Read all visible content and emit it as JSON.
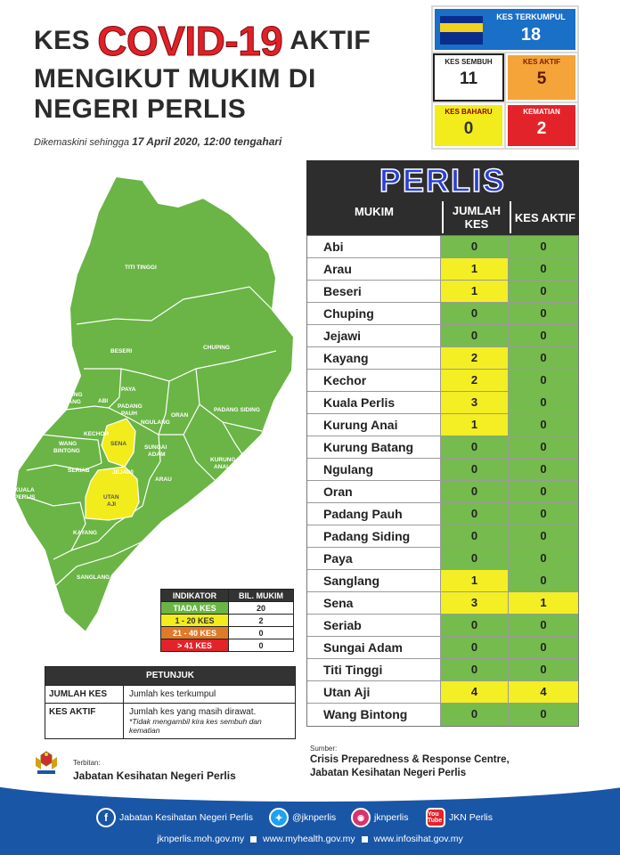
{
  "header": {
    "title_kes": "KES",
    "title_covid": "COVID-19",
    "title_aktif": "AKTIF",
    "title_line2": "MENGIKUT MUKIM DI",
    "title_line3": "NEGERI PERLIS",
    "updated_prefix": "Dikemaskini sehingga",
    "updated_value": "17 April 2020, 12:00 tengahari"
  },
  "stats": {
    "terkumpul_label": "KES TERKUMPUL",
    "terkumpul_value": "18",
    "sembuh_label": "KES SEMBUH",
    "sembuh_value": "11",
    "aktif_label": "KES AKTIF",
    "aktif_value": "5",
    "baharu_label": "KES BAHARU",
    "baharu_value": "0",
    "kematian_label": "KEMATIAN",
    "kematian_value": "2"
  },
  "map": {
    "labels": {
      "titi_tinggi": "TITI TINGGI",
      "beseri": "BESERI",
      "chuping": "CHUPING",
      "paya": "PAYA",
      "kurung_batang_1": "KURUNG",
      "kurung_batang_2": "BATANG",
      "abi": "ABI",
      "padang_pauh_1": "PADANG",
      "padang_pauh_2": "PAUH",
      "ngulang": "NGULANG",
      "oran": "ORAN",
      "padang_siding": "PADANG SIDING",
      "kechor": "KECHOR",
      "wang_bintong_1": "WANG",
      "wang_bintong_2": "BINTONG",
      "sena": "SENA",
      "sungai_adam_1": "SUNGAI",
      "sungai_adam_2": "ADAM",
      "kurung_anai_1": "KURUNG",
      "kurung_anai_2": "ANAI",
      "seriab": "SERIAB",
      "jejawi": "JEJAWI",
      "arau": "ARAU",
      "kuala_perlis_1": "KUALA",
      "kuala_perlis_2": "PERLIS",
      "utan_aji_1": "UTAN",
      "utan_aji_2": "AJI",
      "kayang": "KAYANG",
      "sanglang": "SANGLANG"
    },
    "colors": {
      "green": "#6ab545",
      "yellow": "#f2ec1c",
      "border": "#ffffff"
    }
  },
  "indikator": {
    "header_label": "INDIKATOR",
    "header_count": "BIL. MUKIM",
    "rows": [
      {
        "label": "TIADA KES",
        "count": "20"
      },
      {
        "label": "1 - 20 KES",
        "count": "2"
      },
      {
        "label": "21 - 40 KES",
        "count": "0"
      },
      {
        "label": "> 41 KES",
        "count": "0"
      }
    ]
  },
  "petunjuk": {
    "title": "PETUNJUK",
    "rows": [
      {
        "key": "JUMLAH KES",
        "value": "Jumlah kes terkumpul",
        "note": ""
      },
      {
        "key": "KES AKTIF",
        "value": "Jumlah kes yang masih dirawat.",
        "note": "*Tidak mengambil kira kes sembuh dan kematian"
      }
    ]
  },
  "table": {
    "state_title": "PERLIS",
    "col_mukim": "MUKIM",
    "col_jumlah": "JUMLAH KES",
    "col_aktif": "KES AKTIF",
    "rows": [
      {
        "name": "Abi",
        "jumlah": "0",
        "aktif": "0"
      },
      {
        "name": "Arau",
        "jumlah": "1",
        "aktif": "0"
      },
      {
        "name": "Beseri",
        "jumlah": "1",
        "aktif": "0"
      },
      {
        "name": "Chuping",
        "jumlah": "0",
        "aktif": "0"
      },
      {
        "name": "Jejawi",
        "jumlah": "0",
        "aktif": "0"
      },
      {
        "name": "Kayang",
        "jumlah": "2",
        "aktif": "0"
      },
      {
        "name": "Kechor",
        "jumlah": "2",
        "aktif": "0"
      },
      {
        "name": "Kuala Perlis",
        "jumlah": "3",
        "aktif": "0"
      },
      {
        "name": "Kurung Anai",
        "jumlah": "1",
        "aktif": "0"
      },
      {
        "name": "Kurung Batang",
        "jumlah": "0",
        "aktif": "0"
      },
      {
        "name": "Ngulang",
        "jumlah": "0",
        "aktif": "0"
      },
      {
        "name": "Oran",
        "jumlah": "0",
        "aktif": "0"
      },
      {
        "name": "Padang Pauh",
        "jumlah": "0",
        "aktif": "0"
      },
      {
        "name": "Padang Siding",
        "jumlah": "0",
        "aktif": "0"
      },
      {
        "name": "Paya",
        "jumlah": "0",
        "aktif": "0"
      },
      {
        "name": "Sanglang",
        "jumlah": "1",
        "aktif": "0"
      },
      {
        "name": "Sena",
        "jumlah": "3",
        "aktif": "1"
      },
      {
        "name": "Seriab",
        "jumlah": "0",
        "aktif": "0"
      },
      {
        "name": "Sungai Adam",
        "jumlah": "0",
        "aktif": "0"
      },
      {
        "name": "Titi Tinggi",
        "jumlah": "0",
        "aktif": "0"
      },
      {
        "name": "Utan Aji",
        "jumlah": "4",
        "aktif": "4"
      },
      {
        "name": "Wang Bintong",
        "jumlah": "0",
        "aktif": "0"
      }
    ]
  },
  "footer": {
    "terbitan_label": "Terbitan:",
    "terbitan": "Jabatan Kesihatan Negeri Perlis",
    "sumber_label": "Sumber:",
    "sumber_line1": "Crisis Preparedness & Response Centre,",
    "sumber_line2": "Jabatan Kesihatan Negeri Perlis",
    "facebook": "Jabatan Kesihatan Negeri Perlis",
    "twitter": "@jknperlis",
    "instagram": "jknperlis",
    "youtube": "JKN Perlis",
    "youtube_icon_text": "You Tube",
    "link1": "jknperlis.moh.gov.my",
    "link2": "www.myhealth.gov.my",
    "link3": "www.infosihat.gov.my"
  }
}
